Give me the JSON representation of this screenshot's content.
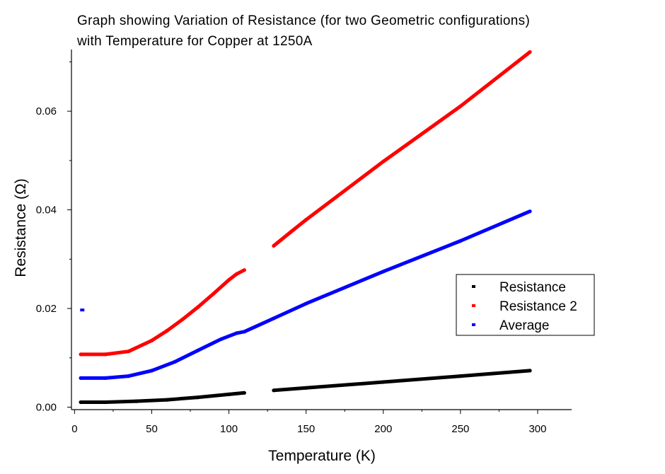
{
  "chart_data": {
    "type": "scatter",
    "title_lines": [
      "Graph showing Variation of Resistance (for two Geometric configurations)",
      "with Temperature for Copper at 1250A"
    ],
    "xlabel": "Temperature (K)",
    "ylabel": "Resistance (Ω)",
    "xlim": [
      -2,
      322
    ],
    "ylim": [
      -0.0005,
      0.0725
    ],
    "x_ticks": [
      0,
      50,
      100,
      150,
      200,
      250,
      300
    ],
    "x_tick_labels": [
      "0",
      "50",
      "100",
      "150",
      "200",
      "250",
      "300"
    ],
    "y_ticks": [
      0.0,
      0.02,
      0.04,
      0.06
    ],
    "y_tick_labels": [
      "0.00",
      "0.02",
      "0.04",
      "0.06"
    ],
    "legend_position": "right",
    "series": [
      {
        "name": "Resistance",
        "color": "#000000",
        "segments": [
          [
            [
              4,
              0.001
            ],
            [
              20,
              0.001
            ],
            [
              40,
              0.0012
            ],
            [
              60,
              0.0015
            ],
            [
              80,
              0.002
            ],
            [
              100,
              0.0026
            ],
            [
              110,
              0.0029
            ]
          ],
          [
            [
              129,
              0.0034
            ],
            [
              150,
              0.0039
            ],
            [
              200,
              0.0051
            ],
            [
              250,
              0.0063
            ],
            [
              295,
              0.0074
            ]
          ]
        ],
        "outliers": []
      },
      {
        "name": "Resistance 2",
        "color": "#ff0000",
        "segments": [
          [
            [
              4,
              0.0107
            ],
            [
              20,
              0.0107
            ],
            [
              35,
              0.0113
            ],
            [
              50,
              0.0135
            ],
            [
              60,
              0.0155
            ],
            [
              70,
              0.0178
            ],
            [
              80,
              0.0203
            ],
            [
              90,
              0.023
            ],
            [
              100,
              0.0258
            ],
            [
              105,
              0.027
            ],
            [
              110,
              0.0278
            ]
          ],
          [
            [
              129,
              0.0327
            ],
            [
              140,
              0.0355
            ],
            [
              150,
              0.038
            ],
            [
              200,
              0.0498
            ],
            [
              250,
              0.061
            ],
            [
              295,
              0.072
            ]
          ]
        ],
        "outliers": []
      },
      {
        "name": "Average",
        "color": "#0000ff",
        "segments": [
          [
            [
              4,
              0.0059
            ],
            [
              20,
              0.0059
            ],
            [
              35,
              0.0063
            ],
            [
              50,
              0.0074
            ],
            [
              65,
              0.0092
            ],
            [
              80,
              0.0115
            ],
            [
              95,
              0.0138
            ],
            [
              105,
              0.015
            ],
            [
              110,
              0.0153
            ],
            [
              129,
              0.018
            ],
            [
              150,
              0.021
            ],
            [
              200,
              0.0275
            ],
            [
              250,
              0.0337
            ],
            [
              295,
              0.0397
            ]
          ]
        ],
        "outliers": [
          [
            5,
            0.0197
          ]
        ]
      }
    ]
  }
}
